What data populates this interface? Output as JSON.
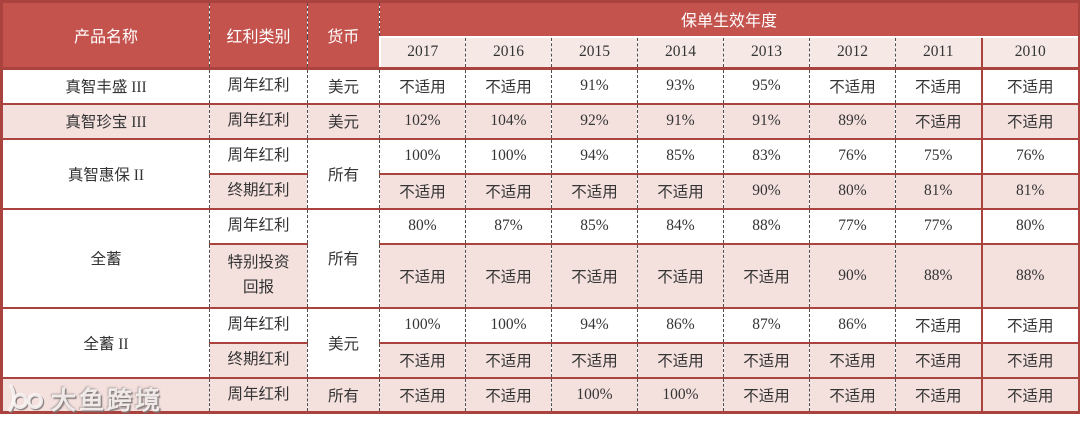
{
  "colors": {
    "header_bg": "#c4524d",
    "border": "#aa433e",
    "row_pink": "#f4e1de",
    "years_row_bg": "#f5e8e5",
    "header_text": "#ffffff",
    "cell_text": "#343434"
  },
  "table": {
    "column_headers": {
      "product": "产品名称",
      "dividend_type": "红利类别",
      "currency": "货币",
      "policy_year_group": "保单生效年度"
    },
    "years": [
      "2017",
      "2016",
      "2015",
      "2014",
      "2013",
      "2012",
      "2011",
      "2010"
    ],
    "na_label": "不适用",
    "rows": [
      {
        "product": "真智丰盛 III",
        "product_rowspan": 1,
        "dividend_type": "周年红利",
        "currency": "美元",
        "currency_rowspan": 1,
        "shaded": false,
        "values": [
          "不适用",
          "不适用",
          "91%",
          "93%",
          "95%",
          "不适用",
          "不适用",
          "不适用"
        ]
      },
      {
        "product": "真智珍宝 III",
        "product_rowspan": 1,
        "dividend_type": "周年红利",
        "currency": "美元",
        "currency_rowspan": 1,
        "shaded": true,
        "values": [
          "102%",
          "104%",
          "92%",
          "91%",
          "91%",
          "89%",
          "不适用",
          "不适用"
        ]
      },
      {
        "product": "真智惠保 II",
        "product_rowspan": 2,
        "dividend_type": "周年红利",
        "currency": "所有",
        "currency_rowspan": 2,
        "shaded": false,
        "values": [
          "100%",
          "100%",
          "94%",
          "85%",
          "83%",
          "76%",
          "75%",
          "76%"
        ]
      },
      {
        "dividend_type": "终期红利",
        "shaded": true,
        "values": [
          "不适用",
          "不适用",
          "不适用",
          "不适用",
          "90%",
          "80%",
          "81%",
          "81%"
        ]
      },
      {
        "product": "全蓄",
        "product_rowspan": 2,
        "dividend_type": "周年红利",
        "currency": "所有",
        "currency_rowspan": 2,
        "shaded": false,
        "values": [
          "80%",
          "87%",
          "85%",
          "84%",
          "88%",
          "77%",
          "77%",
          "80%"
        ]
      },
      {
        "dividend_type": "特别投资回报",
        "shaded": true,
        "tall": true,
        "values": [
          "不适用",
          "不适用",
          "不适用",
          "不适用",
          "不适用",
          "90%",
          "88%",
          "88%"
        ]
      },
      {
        "product": "全蓄 II",
        "product_rowspan": 2,
        "dividend_type": "周年红利",
        "currency": "美元",
        "currency_rowspan": 2,
        "shaded": false,
        "values": [
          "100%",
          "100%",
          "94%",
          "86%",
          "87%",
          "86%",
          "不适用",
          "不适用"
        ]
      },
      {
        "dividend_type": "终期红利",
        "shaded": true,
        "values": [
          "不适用",
          "不适用",
          "不适用",
          "不适用",
          "不适用",
          "不适用",
          "不适用",
          "不适用"
        ]
      },
      {
        "product": "",
        "product_rowspan": 1,
        "dividend_type": "周年红利",
        "currency": "所有",
        "currency_rowspan": 1,
        "shaded": true,
        "values": [
          "不适用",
          "不适用",
          "100%",
          "100%",
          "不适用",
          "不适用",
          "不适用",
          "不适用"
        ]
      }
    ]
  },
  "watermark": {
    "text": "大鱼跨境"
  }
}
